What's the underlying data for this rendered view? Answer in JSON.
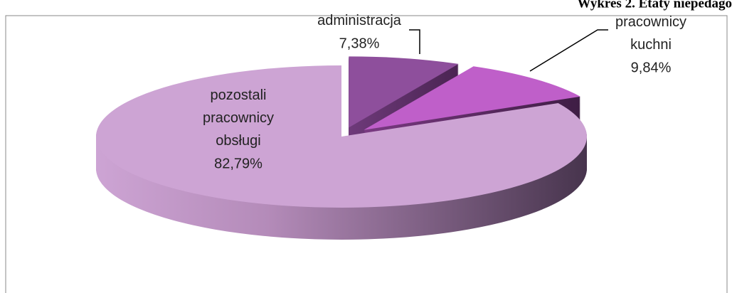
{
  "chart_data": {
    "type": "pie",
    "title": "Wykres 2. Etaty niepedago",
    "categories": [
      "administracja",
      "pracownicy kuchni",
      "pozostali pracownicy obsługi"
    ],
    "values": [
      7.38,
      9.84,
      82.79
    ],
    "value_labels": [
      "7,38%",
      "9,84%",
      "82,79%"
    ],
    "colors": [
      "#8e4f9c",
      "#bf5fc9",
      "#cda4d4"
    ]
  }
}
